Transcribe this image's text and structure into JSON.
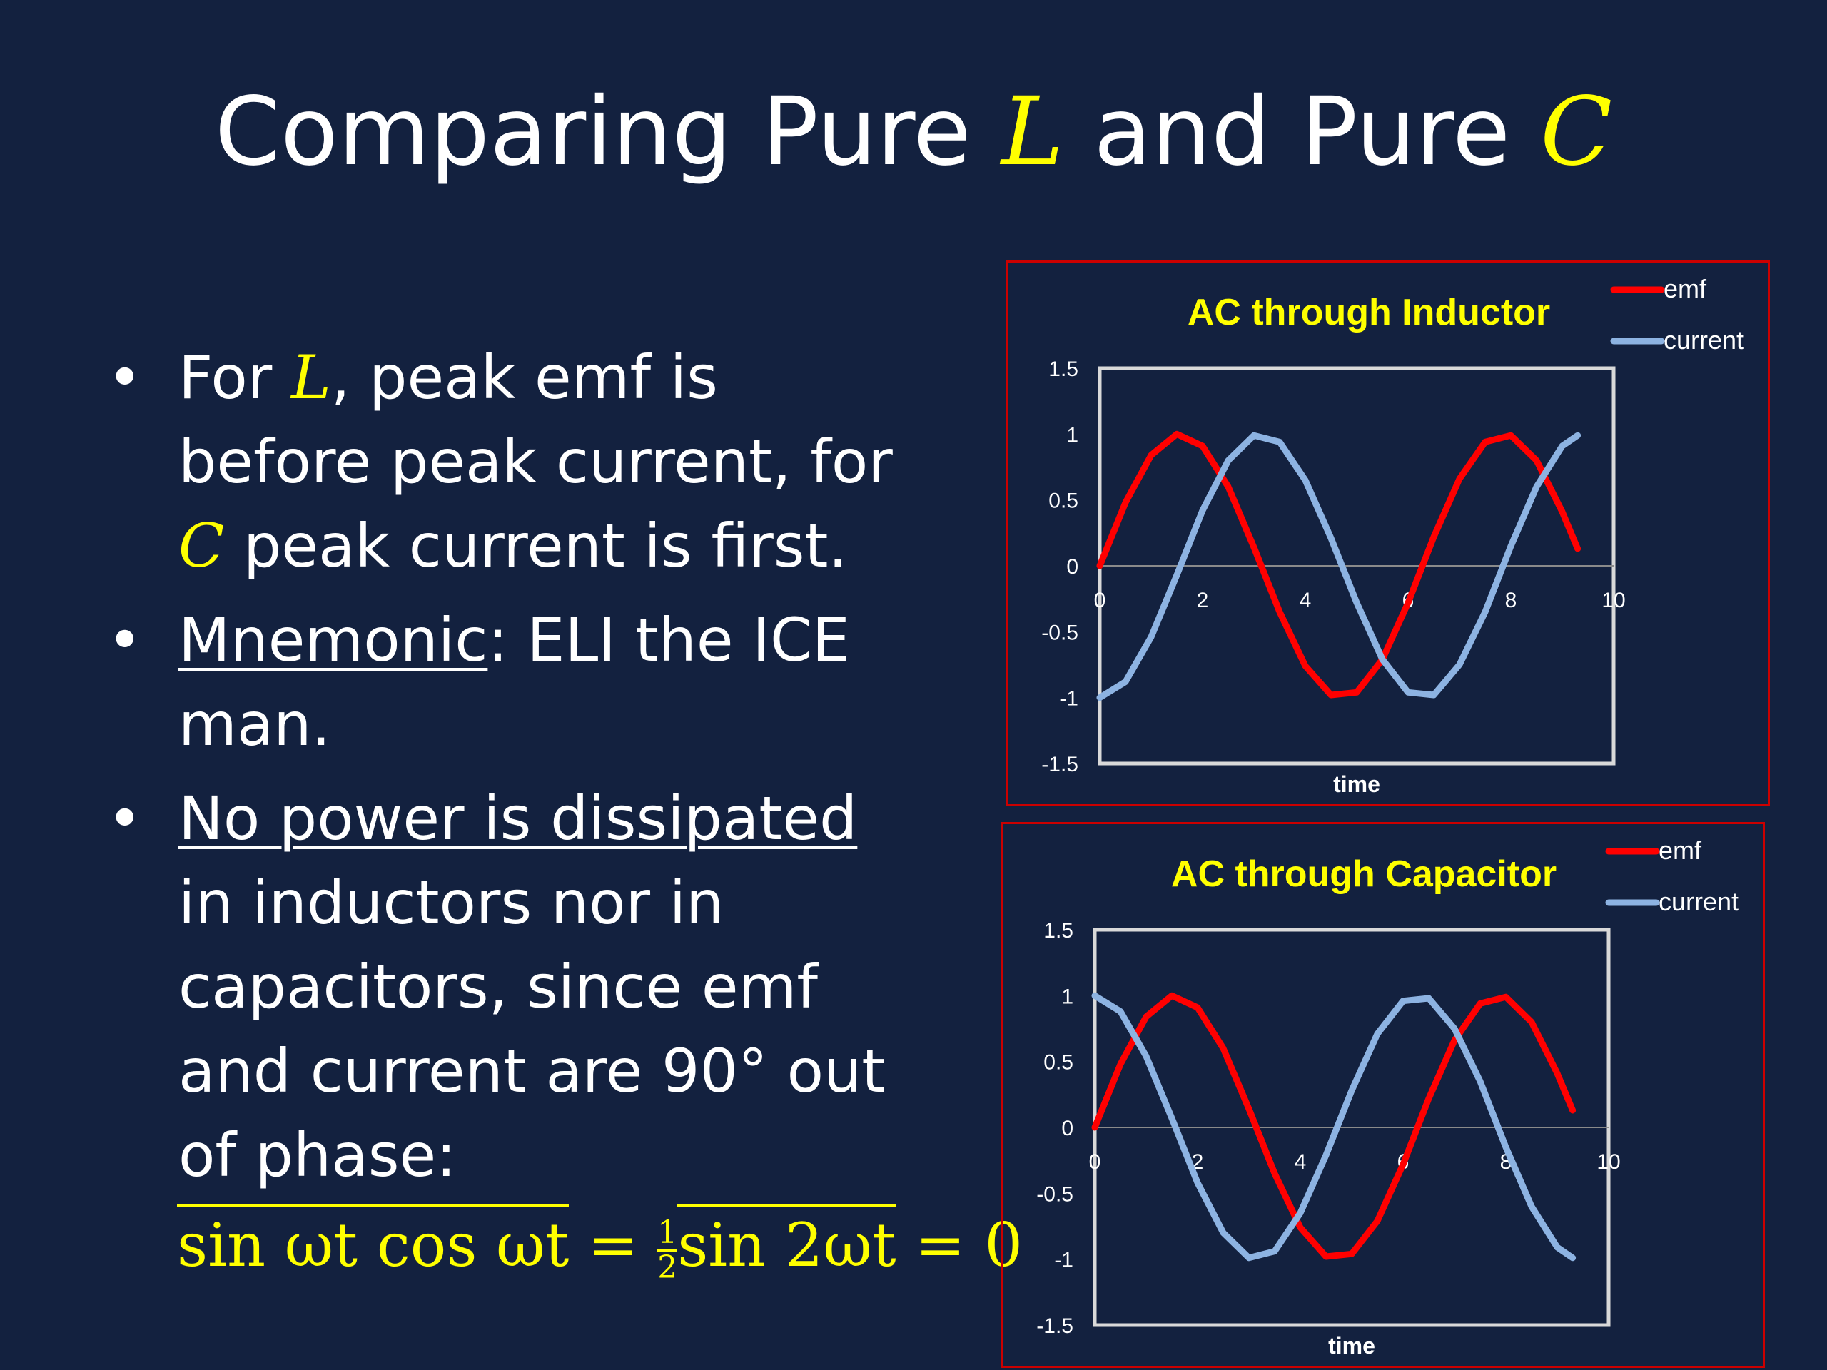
{
  "slide": {
    "title_prefix": "Comparing Pure ",
    "title_sym1": "L",
    "title_middle": " and Pure ",
    "title_sym2": "C"
  },
  "bullets": [
    {
      "marker": "•",
      "parts": [
        "For ",
        "L",
        ", peak emf is before peak current, for ",
        "C",
        " peak current is first."
      ]
    },
    {
      "marker": "•",
      "parts": [
        "Mnemonic",
        ": ELI the ICE man."
      ]
    },
    {
      "marker": "•",
      "parts": [
        "No power is dissipated",
        " in inductors nor in capacitors, since emf and current are 90° out of phase:"
      ]
    }
  ],
  "formula": {
    "part1": "sin ωt cos ωt",
    "eq1": " = ",
    "frac_num": "1",
    "frac_den": "2",
    "part2": "sin 2ωt",
    "eq2": " = 0"
  },
  "colors": {
    "background": "#13213f",
    "accent": "#ffff00",
    "emf": "#ff0000",
    "current": "#8db3e2",
    "frame": "#cc0000"
  },
  "chart_data": [
    {
      "type": "line",
      "title": "AC through Inductor",
      "xlabel": "time",
      "ylabel": "",
      "xlim": [
        0,
        10
      ],
      "ylim": [
        -1.5,
        1.5
      ],
      "xticks": [
        "0",
        "2",
        "4",
        "6",
        "8",
        "10"
      ],
      "yticks": [
        "1.5",
        "1",
        "0.5",
        "0",
        "-0.5",
        "-1",
        "-1.5"
      ],
      "legend_position": "top-right",
      "grid": false,
      "x": [
        0,
        0.5,
        1,
        1.5,
        2,
        2.5,
        3,
        3.5,
        4,
        4.5,
        5,
        5.5,
        6,
        6.5,
        7,
        7.5,
        8,
        8.5,
        9,
        9.3
      ],
      "series": [
        {
          "name": "emf",
          "color": "#ff0000",
          "values": [
            0,
            0.48,
            0.84,
            1.0,
            0.91,
            0.6,
            0.14,
            -0.35,
            -0.76,
            -0.98,
            -0.96,
            -0.71,
            -0.28,
            0.22,
            0.66,
            0.94,
            0.99,
            0.8,
            0.41,
            0.13
          ]
        },
        {
          "name": "current",
          "color": "#8db3e2",
          "values": [
            -1,
            -0.88,
            -0.54,
            -0.07,
            0.42,
            0.8,
            0.99,
            0.94,
            0.65,
            0.21,
            -0.28,
            -0.71,
            -0.96,
            -0.98,
            -0.75,
            -0.35,
            0.15,
            0.6,
            0.91,
            0.99
          ]
        }
      ]
    },
    {
      "type": "line",
      "title": "AC through Capacitor",
      "xlabel": "time",
      "ylabel": "",
      "xlim": [
        0,
        10
      ],
      "ylim": [
        -1.5,
        1.5
      ],
      "xticks": [
        "0",
        "2",
        "4",
        "6",
        "8",
        "10"
      ],
      "yticks": [
        "1.5",
        "1",
        "0.5",
        "0",
        "-0.5",
        "-1",
        "-1.5"
      ],
      "legend_position": "top-right",
      "grid": false,
      "x": [
        0,
        0.5,
        1,
        1.5,
        2,
        2.5,
        3,
        3.5,
        4,
        4.5,
        5,
        5.5,
        6,
        6.5,
        7,
        7.5,
        8,
        8.5,
        9,
        9.3
      ],
      "series": [
        {
          "name": "emf",
          "color": "#ff0000",
          "values": [
            0,
            0.48,
            0.84,
            1.0,
            0.91,
            0.6,
            0.14,
            -0.35,
            -0.76,
            -0.98,
            -0.96,
            -0.71,
            -0.28,
            0.22,
            0.66,
            0.94,
            0.99,
            0.8,
            0.41,
            0.13
          ]
        },
        {
          "name": "current",
          "color": "#8db3e2",
          "values": [
            1,
            0.88,
            0.54,
            0.07,
            -0.42,
            -0.8,
            -0.99,
            -0.94,
            -0.65,
            -0.21,
            0.28,
            0.71,
            0.96,
            0.98,
            0.75,
            0.35,
            -0.15,
            -0.6,
            -0.91,
            -0.99
          ]
        }
      ]
    }
  ]
}
